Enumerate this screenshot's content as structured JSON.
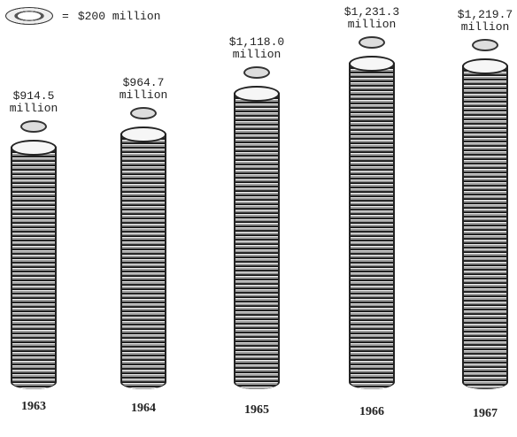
{
  "chart_data": {
    "type": "bar",
    "legend": "$200 million",
    "legend_symbol": "=",
    "categories": [
      "1963",
      "1964",
      "1965",
      "1966",
      "1967"
    ],
    "values": [
      914.5,
      964.7,
      1118.0,
      1231.3,
      1219.7
    ],
    "value_labels": [
      "$914.5 million",
      "$964.7 million",
      "$1,118.0 million",
      "$1,231.3 million",
      "$1,219.7 million"
    ]
  }
}
